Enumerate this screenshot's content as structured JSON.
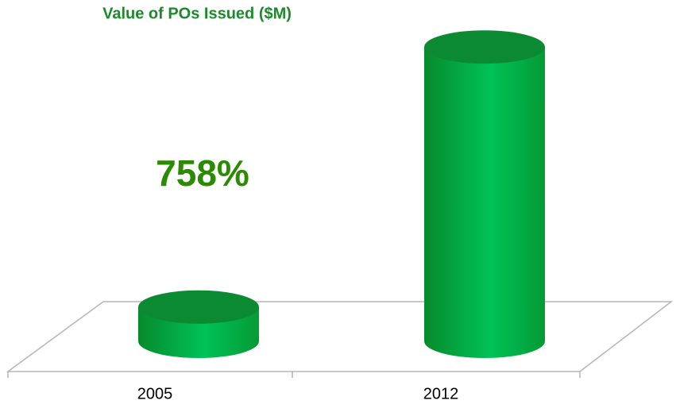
{
  "chart_data": {
    "type": "bar3d",
    "title": "Value of POs Issued ($M)",
    "annotation": "758%",
    "categories": [
      "2005",
      "2012"
    ],
    "values": [
      45,
      386
    ],
    "color": "#00b050",
    "ylim": [
      0,
      406
    ]
  }
}
